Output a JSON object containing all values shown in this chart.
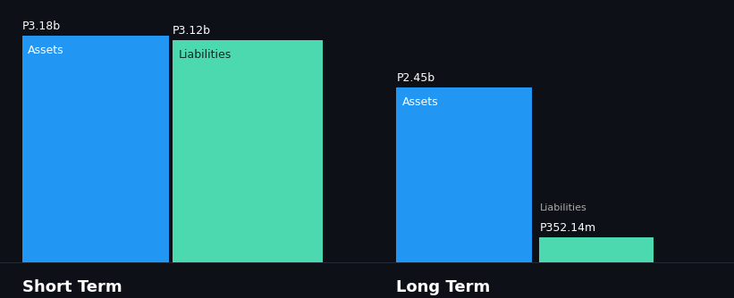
{
  "background_color": "#0d1117",
  "short_term": {
    "assets_value": 3.18,
    "liabilities_value": 3.12,
    "assets_label": "P3.18b",
    "liabilities_label": "P3.12b",
    "assets_inner": "Assets",
    "liabilities_inner": "Liabilities",
    "assets_color": "#2196f3",
    "liabilities_color": "#4dd9b0"
  },
  "long_term": {
    "assets_value": 2.45,
    "liabilities_value": 0.35214,
    "assets_label": "P2.45b",
    "liabilities_label": "P352.14m",
    "assets_inner": "Assets",
    "liabilities_inner": "Liabilities",
    "assets_color": "#2196f3",
    "liabilities_color": "#4dd9b0"
  },
  "max_value": 3.18,
  "section_labels": [
    "Short Term",
    "Long Term"
  ],
  "text_color": "#ffffff",
  "label_color": "#aaaaaa",
  "font_size_value": 9,
  "font_size_inner": 9,
  "font_size_section": 13
}
